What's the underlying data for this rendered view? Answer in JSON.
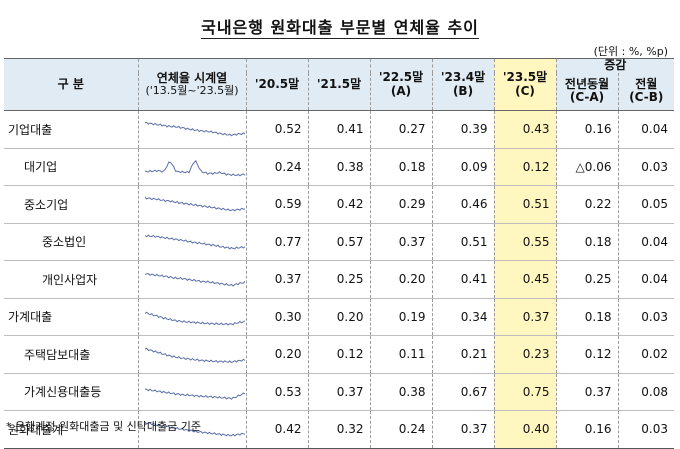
{
  "title": "국내은행 원화대출 부문별 연체율 추이",
  "unit": "(단위 : %, %p)",
  "header": {
    "category": "구    분",
    "sparkline_title": "연체율 시계열",
    "sparkline_sub": "('13.5월~'23.5월)",
    "col_205": "'20.5말",
    "col_215": "'21.5말",
    "col_225": "'22.5말",
    "col_225_sub": "(A)",
    "col_234": "'23.4말",
    "col_234_sub": "(B)",
    "col_235": "'23.5말",
    "col_235_sub": "(C)",
    "change": "증감",
    "yoy": "전년동월",
    "yoy_sub": "(C-A)",
    "mom": "전월",
    "mom_sub": "(C-B)"
  },
  "rows": [
    {
      "label": "기업대출",
      "v205": "0.52",
      "v215": "0.41",
      "v225": "0.27",
      "v234": "0.39",
      "v235": "0.43",
      "yoy": "0.16",
      "mom": "0.04"
    },
    {
      "label": "대기업",
      "v205": "0.24",
      "v215": "0.38",
      "v225": "0.18",
      "v234": "0.09",
      "v235": "0.12",
      "yoy": "△0.06",
      "mom": "0.03"
    },
    {
      "label": "중소기업",
      "v205": "0.59",
      "v215": "0.42",
      "v225": "0.29",
      "v234": "0.46",
      "v235": "0.51",
      "yoy": "0.22",
      "mom": "0.05"
    },
    {
      "label": "중소법인",
      "v205": "0.77",
      "v215": "0.57",
      "v225": "0.37",
      "v234": "0.51",
      "v235": "0.55",
      "yoy": "0.18",
      "mom": "0.04"
    },
    {
      "label": "개인사업자",
      "v205": "0.37",
      "v215": "0.25",
      "v225": "0.20",
      "v234": "0.41",
      "v235": "0.45",
      "yoy": "0.25",
      "mom": "0.04"
    },
    {
      "label": "가계대출",
      "v205": "0.30",
      "v215": "0.20",
      "v225": "0.19",
      "v234": "0.34",
      "v235": "0.37",
      "yoy": "0.18",
      "mom": "0.03"
    },
    {
      "label": "주택담보대출",
      "v205": "0.20",
      "v215": "0.12",
      "v225": "0.11",
      "v234": "0.21",
      "v235": "0.23",
      "yoy": "0.12",
      "mom": "0.02"
    },
    {
      "label": "가계신용대출등",
      "v205": "0.53",
      "v215": "0.37",
      "v225": "0.38",
      "v234": "0.67",
      "v235": "0.75",
      "yoy": "0.37",
      "mom": "0.08"
    },
    {
      "label": "원화대출계",
      "v205": "0.42",
      "v215": "0.32",
      "v225": "0.24",
      "v234": "0.37",
      "v235": "0.40",
      "yoy": "0.16",
      "mom": "0.03"
    }
  ],
  "colors": {
    "header_bg": "#e0ebf3",
    "highlight": "#fff7bf",
    "spark": "#5b6fa8"
  },
  "note": "* 은행계정 원화대출금 및 신탁대출금 기준"
}
